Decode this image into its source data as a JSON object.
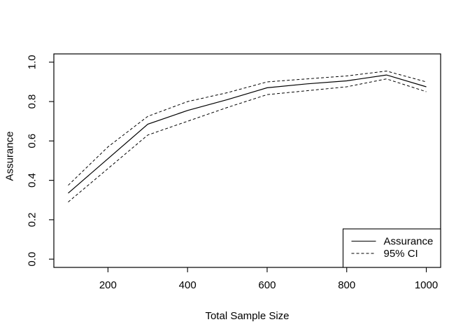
{
  "colors": {
    "foreground": "#000000",
    "background": "#ffffff"
  },
  "chart_data": {
    "type": "line",
    "title": "",
    "xlabel": "Total Sample Size",
    "ylabel": "Assurance",
    "x": [
      100,
      200,
      300,
      400,
      500,
      600,
      700,
      800,
      900,
      1000
    ],
    "series": [
      {
        "id": "assurance",
        "name": "Assurance",
        "style": "solid",
        "values": [
          0.335,
          0.51,
          0.685,
          0.755,
          0.81,
          0.87,
          0.89,
          0.905,
          0.935,
          0.875
        ]
      },
      {
        "id": "ci-upper",
        "name": "95% CI upper bound",
        "style": "dashed",
        "values": [
          0.375,
          0.57,
          0.725,
          0.8,
          0.845,
          0.9,
          0.915,
          0.93,
          0.955,
          0.9
        ]
      },
      {
        "id": "ci-lower",
        "name": "95% CI lower bound",
        "style": "dashed",
        "values": [
          0.29,
          0.46,
          0.63,
          0.7,
          0.77,
          0.835,
          0.855,
          0.875,
          0.915,
          0.85
        ]
      }
    ],
    "legend": {
      "position": "bottom-right",
      "items": [
        {
          "label": "Assurance",
          "style": "solid"
        },
        {
          "label": "95% CI",
          "style": "dashed"
        }
      ]
    },
    "x_ticks": [
      200,
      400,
      600,
      800,
      1000
    ],
    "x_tick_labels": [
      "200",
      "400",
      "600",
      "800",
      "1000"
    ],
    "y_ticks": [
      0.0,
      0.2,
      0.4,
      0.6,
      0.8,
      1.0
    ],
    "y_tick_labels": [
      "0.0",
      "0.2",
      "0.4",
      "0.6",
      "0.8",
      "1.0"
    ],
    "xlim": [
      64,
      1036
    ],
    "ylim": [
      -0.042,
      1.042
    ],
    "grid": false
  }
}
